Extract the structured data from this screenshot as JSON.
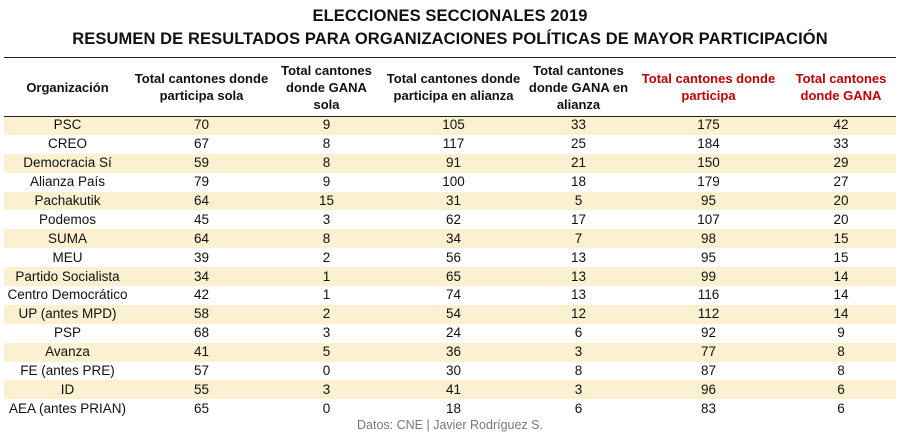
{
  "title": "ELECCIONES SECCIONALES 2019",
  "subtitle": "RESUMEN DE RESULTADOS PARA ORGANIZACIONES POLÍTICAS DE MAYOR PARTICIPACIÓN",
  "headers": [
    "Organización",
    "Total cantones donde participa sola",
    "Total cantones donde GANA sola",
    "Total cantones donde participa en alianza",
    "Total cantones donde GANA en alianza",
    "Total cantones donde participa",
    "Total cantones donde GANA"
  ],
  "highlight_header_color": "#c00000",
  "shade_color": "#fbf0cf",
  "rows": [
    [
      "PSC",
      "70",
      "9",
      "105",
      "33",
      "175",
      "42"
    ],
    [
      "CREO",
      "67",
      "8",
      "117",
      "25",
      "184",
      "33"
    ],
    [
      "Democracia Sí",
      "59",
      "8",
      "91",
      "21",
      "150",
      "29"
    ],
    [
      "Alianza País",
      "79",
      "9",
      "100",
      "18",
      "179",
      "27"
    ],
    [
      "Pachakutik",
      "64",
      "15",
      "31",
      "5",
      "95",
      "20"
    ],
    [
      "Podemos",
      "45",
      "3",
      "62",
      "17",
      "107",
      "20"
    ],
    [
      "SUMA",
      "64",
      "8",
      "34",
      "7",
      "98",
      "15"
    ],
    [
      "MEU",
      "39",
      "2",
      "56",
      "13",
      "95",
      "15"
    ],
    [
      "Partido Socialista",
      "34",
      "1",
      "65",
      "13",
      "99",
      "14"
    ],
    [
      "Centro Democrático",
      "42",
      "1",
      "74",
      "13",
      "116",
      "14"
    ],
    [
      "UP (antes MPD)",
      "58",
      "2",
      "54",
      "12",
      "112",
      "14"
    ],
    [
      "PSP",
      "68",
      "3",
      "24",
      "6",
      "92",
      "9"
    ],
    [
      "Avanza",
      "41",
      "5",
      "36",
      "3",
      "77",
      "8"
    ],
    [
      "FE (antes PRE)",
      "57",
      "0",
      "30",
      "8",
      "87",
      "8"
    ],
    [
      "ID",
      "55",
      "3",
      "41",
      "3",
      "96",
      "6"
    ],
    [
      "AEA (antes PRIAN)",
      "65",
      "0",
      "18",
      "6",
      "83",
      "6"
    ]
  ],
  "source": "Datos: CNE | Javier Rodríguez S."
}
